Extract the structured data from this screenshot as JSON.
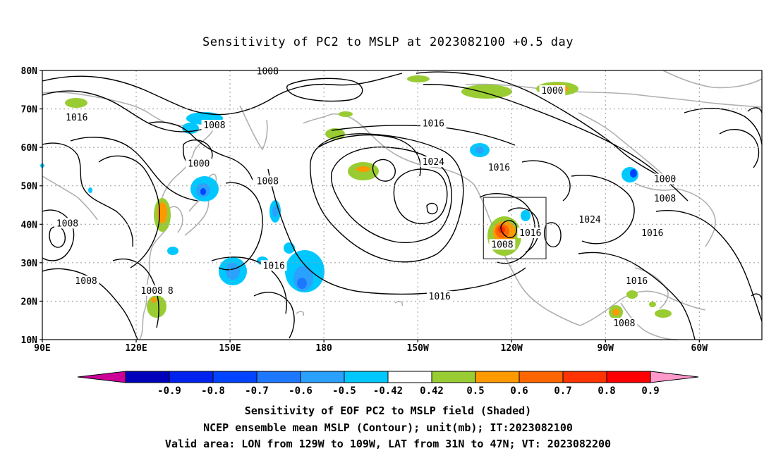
{
  "title": "Sensitivity of PC2 to MSLP at 2023082100 +0.5 day",
  "map": {
    "lon_labels": [
      "90E",
      "120E",
      "150E",
      "180",
      "150W",
      "120W",
      "90W",
      "60W"
    ],
    "lat_labels": [
      "80N",
      "70N",
      "60N",
      "50N",
      "40N",
      "30N",
      "20N",
      "10N"
    ],
    "contour_labels": [
      {
        "text": "1008",
        "lon": 162,
        "lat": 79.5
      },
      {
        "text": "1000",
        "lon": 253,
        "lat": 74.5
      },
      {
        "text": "1016",
        "lon": 101,
        "lat": 67.5
      },
      {
        "text": "1008",
        "lon": 145,
        "lat": 65.5
      },
      {
        "text": "1016",
        "lon": 215,
        "lat": 66
      },
      {
        "text": "1024",
        "lon": 215,
        "lat": 56
      },
      {
        "text": "1016",
        "lon": 236,
        "lat": 54.5
      },
      {
        "text": "1000",
        "lon": 289,
        "lat": 51.5
      },
      {
        "text": "1000",
        "lon": 140,
        "lat": 55.5
      },
      {
        "text": "1008",
        "lon": 162,
        "lat": 51
      },
      {
        "text": "1008",
        "lon": 289,
        "lat": 46.5
      },
      {
        "text": "1024",
        "lon": 265,
        "lat": 41
      },
      {
        "text": "1016",
        "lon": 285,
        "lat": 37.5
      },
      {
        "text": "1008",
        "lon": 98,
        "lat": 40
      },
      {
        "text": "1016",
        "lon": 246,
        "lat": 37.5
      },
      {
        "text": "1008",
        "lon": 237,
        "lat": 34.5
      },
      {
        "text": "1016",
        "lon": 164,
        "lat": 29
      },
      {
        "text": "1008",
        "lon": 104,
        "lat": 25
      },
      {
        "text": "1008",
        "lon": 125,
        "lat": 22.5
      },
      {
        "text": "8",
        "lon": 131,
        "lat": 22.5
      },
      {
        "text": "1016",
        "lon": 217,
        "lat": 21
      },
      {
        "text": "1016",
        "lon": 280,
        "lat": 25
      },
      {
        "text": "1008",
        "lon": 276,
        "lat": 14
      }
    ],
    "valid_box": {
      "lon_min": 231,
      "lon_max": 251,
      "lat_min": 31,
      "lat_max": 47
    }
  },
  "colorbar": {
    "labels": [
      "-0.9",
      "-0.8",
      "-0.7",
      "-0.6",
      "-0.5",
      "-0.42",
      "0.42",
      "0.5",
      "0.6",
      "0.7",
      "0.8",
      "0.9"
    ],
    "colors": [
      "#cc0099",
      "#0000bb",
      "#0022ee",
      "#0044ff",
      "#1e78ff",
      "#2aa0ff",
      "#00c8ff",
      "#ffffff",
      "#99cc33",
      "#ff9900",
      "#ff6600",
      "#ff3300",
      "#ff0000",
      "#ff99cc"
    ]
  },
  "captions": {
    "line1": "Sensitivity of EOF PC2 to MSLP field (Shaded)",
    "line2": "NCEP ensemble mean MSLP (Contour); unit(mb); IT:2023082100",
    "line3": "Valid area: LON from 129W to 109W, LAT from 31N to 47N; VT: 2023082200"
  }
}
